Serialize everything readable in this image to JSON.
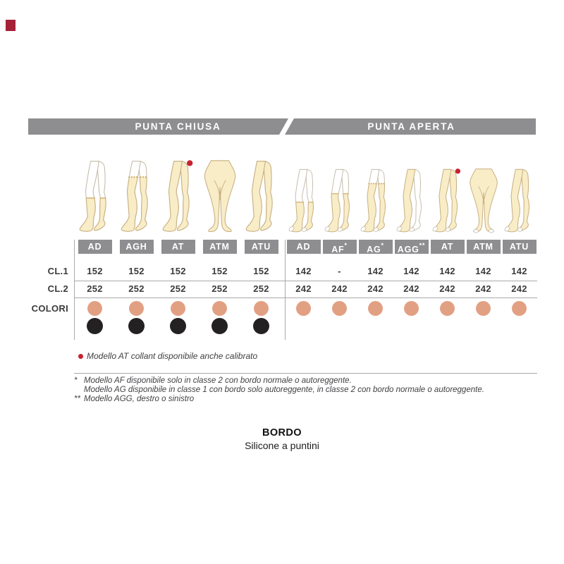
{
  "logo": {
    "color": "#a42138"
  },
  "banners": {
    "left": "PUNTA CHIUSA",
    "right": "PUNTA APERTA"
  },
  "row_labels": {
    "cl1": "CL.1",
    "cl2": "CL.2",
    "colori": "COLORI"
  },
  "colors": {
    "banner_gray": "#8e8e90",
    "chip_gray": "#8e8e90",
    "beige_dot": "#e2a083",
    "black_dot": "#242122",
    "red": "#c62231",
    "leg_fill": "#f8edc7",
    "leg_stroke": "#c9b083",
    "leg_base_stroke": "#c5bcaa",
    "band_tan": "#c9a55f",
    "line_gray": "#a9a9a9",
    "text_dark": "#3b3b3d"
  },
  "tables": [
    {
      "side_label": "punta-chiusa",
      "columns": [
        {
          "model": "AD",
          "cl1": "152",
          "cl2": "252",
          "dots": [
            "beige",
            "black"
          ],
          "figure": {
            "coverage": "knee",
            "open_toe": false,
            "red_dot": false,
            "lace_band": false
          }
        },
        {
          "model": "AGH",
          "cl1": "152",
          "cl2": "252",
          "dots": [
            "beige",
            "black"
          ],
          "figure": {
            "coverage": "thigh",
            "open_toe": false,
            "red_dot": false,
            "lace_band": true
          }
        },
        {
          "model": "AT",
          "cl1": "152",
          "cl2": "252",
          "dots": [
            "beige",
            "black"
          ],
          "figure": {
            "coverage": "tights",
            "open_toe": false,
            "red_dot": true,
            "lace_band": false
          }
        },
        {
          "model": "ATM",
          "cl1": "152",
          "cl2": "252",
          "dots": [
            "beige",
            "black"
          ],
          "figure": {
            "coverage": "tights-front",
            "open_toe": false,
            "red_dot": false,
            "lace_band": false
          }
        },
        {
          "model": "ATU",
          "cl1": "152",
          "cl2": "252",
          "dots": [
            "beige",
            "black"
          ],
          "figure": {
            "coverage": "tights",
            "open_toe": false,
            "red_dot": false,
            "lace_band": false
          }
        }
      ]
    },
    {
      "side_label": "punta-aperta",
      "columns": [
        {
          "model": "AD",
          "cl1": "142",
          "cl2": "242",
          "dots": [
            "beige"
          ],
          "figure": {
            "coverage": "knee",
            "open_toe": true,
            "red_dot": false,
            "lace_band": false
          }
        },
        {
          "model": "AF*",
          "cl1": "-",
          "cl2": "242",
          "dots": [
            "beige"
          ],
          "figure": {
            "coverage": "above-knee",
            "open_toe": true,
            "red_dot": false,
            "lace_band": false
          }
        },
        {
          "model": "AG*",
          "cl1": "142",
          "cl2": "242",
          "dots": [
            "beige"
          ],
          "figure": {
            "coverage": "thigh",
            "open_toe": true,
            "red_dot": false,
            "lace_band": true
          }
        },
        {
          "model": "AGG**",
          "cl1": "142",
          "cl2": "242",
          "dots": [
            "beige"
          ],
          "figure": {
            "coverage": "one-leg",
            "open_toe": true,
            "red_dot": false,
            "lace_band": false
          }
        },
        {
          "model": "AT",
          "cl1": "142",
          "cl2": "242",
          "dots": [
            "beige"
          ],
          "figure": {
            "coverage": "tights",
            "open_toe": true,
            "red_dot": true,
            "lace_band": false
          }
        },
        {
          "model": "ATM",
          "cl1": "142",
          "cl2": "242",
          "dots": [
            "beige"
          ],
          "figure": {
            "coverage": "tights-front",
            "open_toe": true,
            "red_dot": false,
            "lace_band": false
          }
        },
        {
          "model": "ATU",
          "cl1": "142",
          "cl2": "242",
          "dots": [
            "beige"
          ],
          "figure": {
            "coverage": "tights",
            "open_toe": true,
            "red_dot": false,
            "lace_band": false
          }
        }
      ]
    }
  ],
  "footnotes": {
    "red_dot_note": "Modello AT collant disponibile anche calibrato",
    "star1": "*",
    "note1": "Modello AF disponibile solo in classe 2 con bordo normale o autoreggente.",
    "note2": "Modello AG disponibile in classe 1 con bordo solo autoreggente, in classe 2 con bordo normale o autoreggente.",
    "star2": "**",
    "note3": "Modello AGG, destro o sinistro"
  },
  "bottom": {
    "title": "BORDO",
    "subtitle": "Silicone a puntini"
  }
}
